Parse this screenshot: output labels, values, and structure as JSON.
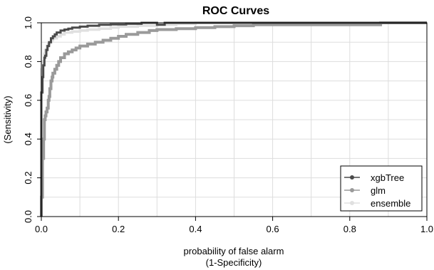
{
  "chart_data": {
    "type": "line",
    "title": "ROC Curves",
    "xlabel": "probability of false alarm",
    "xlabel_sub": "(1-Specificity)",
    "ylabel": "(Sensitivity)",
    "xlim": [
      0,
      1
    ],
    "ylim": [
      0,
      1
    ],
    "x_ticks": [
      0.0,
      0.2,
      0.4,
      0.6,
      0.8,
      1.0
    ],
    "y_ticks": [
      0.0,
      0.2,
      0.4,
      0.6,
      0.8,
      1.0
    ],
    "x_tick_labels": [
      "0.0",
      "0.2",
      "0.4",
      "0.6",
      "0.8",
      "1.0"
    ],
    "y_tick_labels": [
      "0.0",
      "0.2",
      "0.4",
      "0.6",
      "0.8",
      "1.0"
    ],
    "grid_x": [
      0.1,
      0.2,
      0.3,
      0.4,
      0.5,
      0.6,
      0.7,
      0.8,
      0.9
    ],
    "grid_y": [
      0.1,
      0.2,
      0.3,
      0.4,
      0.5,
      0.6,
      0.7,
      0.8,
      0.9
    ],
    "grid": true,
    "legend_position": "bottom-right",
    "series": [
      {
        "name": "xgbTree",
        "color": "#4a4a4a",
        "x": [
          0,
          0,
          0.003,
          0.005,
          0.008,
          0.01,
          0.013,
          0.016,
          0.02,
          0.025,
          0.03,
          0.035,
          0.04,
          0.05,
          0.06,
          0.07,
          0.08,
          0.1,
          0.12,
          0.15,
          0.18,
          0.22,
          0.26,
          0.3,
          0.32,
          0.35,
          0.4,
          0.45,
          0.5,
          0.6,
          0.7,
          0.8,
          0.9,
          1.0
        ],
        "y": [
          0,
          0.62,
          0.64,
          0.72,
          0.78,
          0.82,
          0.83,
          0.86,
          0.88,
          0.9,
          0.92,
          0.93,
          0.94,
          0.95,
          0.96,
          0.965,
          0.97,
          0.975,
          0.98,
          0.985,
          0.99,
          0.992,
          0.995,
          1.0,
          0.99,
          1.0,
          1.0,
          1.0,
          1.0,
          1.0,
          1.0,
          1.0,
          1.0,
          1.0
        ]
      },
      {
        "name": "glm",
        "color": "#9a9a9a",
        "x": [
          0,
          0.003,
          0.006,
          0.008,
          0.01,
          0.012,
          0.015,
          0.018,
          0.02,
          0.022,
          0.025,
          0.028,
          0.03,
          0.035,
          0.04,
          0.045,
          0.05,
          0.06,
          0.07,
          0.08,
          0.09,
          0.1,
          0.12,
          0.14,
          0.16,
          0.18,
          0.2,
          0.22,
          0.25,
          0.28,
          0.3,
          0.35,
          0.4,
          0.45,
          0.5,
          0.55,
          0.6,
          0.7,
          0.8,
          0.88,
          1.0
        ],
        "y": [
          0,
          0.1,
          0.3,
          0.4,
          0.5,
          0.52,
          0.54,
          0.56,
          0.6,
          0.62,
          0.66,
          0.7,
          0.72,
          0.74,
          0.76,
          0.78,
          0.8,
          0.82,
          0.84,
          0.85,
          0.86,
          0.87,
          0.88,
          0.89,
          0.9,
          0.91,
          0.92,
          0.93,
          0.94,
          0.95,
          0.96,
          0.965,
          0.97,
          0.975,
          0.98,
          0.985,
          0.99,
          0.99,
          0.99,
          0.99,
          1.0
        ]
      },
      {
        "name": "ensemble",
        "color": "#e0e0e0",
        "x": [
          0,
          0,
          0.004,
          0.008,
          0.01,
          0.014,
          0.018,
          0.022,
          0.026,
          0.03,
          0.04,
          0.05,
          0.06,
          0.08,
          0.1,
          0.12,
          0.15,
          0.18,
          0.2,
          0.25,
          0.3,
          0.35,
          0.4,
          0.5,
          0.6,
          0.7,
          0.8,
          0.9,
          1.0
        ],
        "y": [
          0,
          0.7,
          0.76,
          0.8,
          0.84,
          0.86,
          0.88,
          0.89,
          0.9,
          0.91,
          0.92,
          0.93,
          0.94,
          0.95,
          0.955,
          0.96,
          0.965,
          0.97,
          0.975,
          0.98,
          0.985,
          0.99,
          0.995,
          1.0,
          1.0,
          1.0,
          1.0,
          1.0,
          1.0
        ]
      }
    ]
  }
}
